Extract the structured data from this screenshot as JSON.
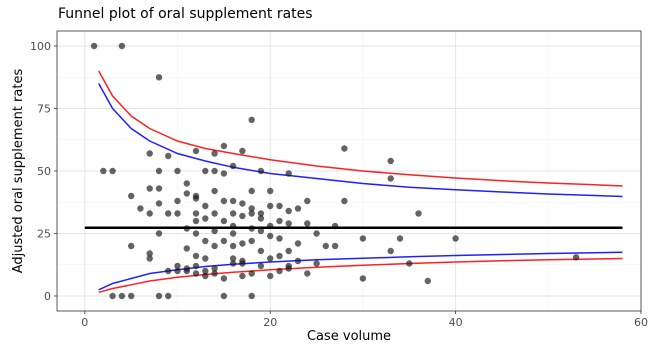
{
  "chart_data": {
    "type": "scatter",
    "title": "Funnel plot of oral supplement rates",
    "xlabel": "Case volume",
    "ylabel": "Adjusted oral supplement rates",
    "xlim": [
      -3,
      60
    ],
    "ylim": [
      -6,
      106
    ],
    "x_ticks": [
      0,
      20,
      40,
      60
    ],
    "y_ticks": [
      0,
      25,
      50,
      75,
      100
    ],
    "grid": true,
    "legend": "none",
    "colors": {
      "points": "#1a1a1a",
      "mean_line": "#000000",
      "limit_99": "#ff2020",
      "limit_95": "#2020ff",
      "grid_major": "#e5e5e5",
      "grid_minor": "#f2f2f2",
      "panel_border": "#333333"
    },
    "mean_rate": 27.3,
    "control_limits": {
      "x": [
        1.5,
        3,
        5,
        7,
        10,
        13,
        16,
        20,
        25,
        30,
        35,
        40,
        45,
        50,
        55,
        58
      ],
      "upper_99": [
        90.0,
        80.0,
        72.0,
        67.0,
        62.0,
        59.0,
        57.0,
        54.5,
        52.0,
        50.0,
        48.5,
        47.2,
        46.1,
        45.2,
        44.5,
        44.0
      ],
      "upper_95": [
        85.0,
        75.0,
        67.0,
        62.0,
        57.0,
        54.0,
        51.5,
        49.0,
        47.0,
        45.0,
        43.5,
        42.5,
        41.6,
        40.8,
        40.2,
        39.8
      ],
      "lower_95": [
        2.5,
        5.0,
        7.0,
        9.0,
        10.5,
        11.8,
        12.7,
        13.6,
        14.5,
        15.1,
        15.7,
        16.2,
        16.6,
        17.0,
        17.3,
        17.5
      ],
      "lower_99": [
        1.5,
        3.0,
        4.5,
        6.0,
        7.5,
        8.6,
        9.5,
        10.5,
        11.5,
        12.3,
        13.0,
        13.6,
        14.1,
        14.5,
        14.8,
        15.0
      ]
    },
    "points": [
      [
        1,
        100
      ],
      [
        4,
        100
      ],
      [
        8,
        87.5
      ],
      [
        18,
        70.5
      ],
      [
        28,
        59
      ],
      [
        15,
        60
      ],
      [
        14,
        57
      ],
      [
        17,
        58
      ],
      [
        12,
        58
      ],
      [
        33,
        54
      ],
      [
        2,
        50
      ],
      [
        3,
        50
      ],
      [
        7,
        57
      ],
      [
        8,
        50
      ],
      [
        9,
        56
      ],
      [
        10,
        50
      ],
      [
        11,
        45
      ],
      [
        13,
        50
      ],
      [
        14,
        50
      ],
      [
        15,
        49
      ],
      [
        16,
        52
      ],
      [
        19,
        50
      ],
      [
        22,
        49
      ],
      [
        33,
        47
      ],
      [
        7,
        43
      ],
      [
        8,
        43
      ],
      [
        11,
        41
      ],
      [
        12,
        40
      ],
      [
        14,
        42
      ],
      [
        18,
        42
      ],
      [
        20,
        42
      ],
      [
        24,
        38
      ],
      [
        28,
        38
      ],
      [
        5,
        40
      ],
      [
        6,
        35
      ],
      [
        8,
        37
      ],
      [
        10,
        38
      ],
      [
        12,
        39
      ],
      [
        13,
        36
      ],
      [
        15,
        38
      ],
      [
        16,
        38
      ],
      [
        17,
        37
      ],
      [
        18,
        35
      ],
      [
        20,
        36
      ],
      [
        21,
        36
      ],
      [
        22,
        34
      ],
      [
        23,
        35
      ],
      [
        36,
        33
      ],
      [
        7,
        33
      ],
      [
        9,
        33
      ],
      [
        10,
        33
      ],
      [
        12,
        33
      ],
      [
        14,
        33
      ],
      [
        16,
        33
      ],
      [
        18,
        33
      ],
      [
        19,
        33
      ],
      [
        24,
        29
      ],
      [
        27,
        28
      ],
      [
        12,
        30
      ],
      [
        13,
        31
      ],
      [
        15,
        30
      ],
      [
        17,
        32
      ],
      [
        19,
        31
      ],
      [
        21,
        30
      ],
      [
        22,
        29
      ],
      [
        11,
        27
      ],
      [
        14,
        26
      ],
      [
        16,
        28
      ],
      [
        18,
        27
      ],
      [
        20,
        28
      ],
      [
        8,
        25
      ],
      [
        12,
        25
      ],
      [
        16,
        25
      ],
      [
        19,
        26
      ],
      [
        20,
        24
      ],
      [
        21,
        23
      ],
      [
        25,
        25
      ],
      [
        30,
        23
      ],
      [
        34,
        23
      ],
      [
        40,
        23
      ],
      [
        13,
        22
      ],
      [
        15,
        22
      ],
      [
        17,
        21
      ],
      [
        18,
        22
      ],
      [
        23,
        21
      ],
      [
        27,
        20
      ],
      [
        5,
        20
      ],
      [
        7,
        17
      ],
      [
        11,
        19
      ],
      [
        14,
        20
      ],
      [
        16,
        20
      ],
      [
        19,
        18
      ],
      [
        22,
        18
      ],
      [
        26,
        20
      ],
      [
        33,
        18
      ],
      [
        7,
        15
      ],
      [
        12,
        16
      ],
      [
        13,
        15
      ],
      [
        16,
        15
      ],
      [
        17,
        14
      ],
      [
        20,
        15
      ],
      [
        21,
        16
      ],
      [
        23,
        14
      ],
      [
        25,
        13
      ],
      [
        35,
        13
      ],
      [
        53,
        15.5
      ],
      [
        10,
        12
      ],
      [
        11,
        10
      ],
      [
        12,
        12
      ],
      [
        13,
        10
      ],
      [
        14,
        11
      ],
      [
        16,
        13
      ],
      [
        17,
        13
      ],
      [
        19,
        12
      ],
      [
        21,
        10
      ],
      [
        22,
        11
      ],
      [
        24,
        9
      ],
      [
        9,
        10
      ],
      [
        10,
        10
      ],
      [
        11,
        11
      ],
      [
        12,
        9
      ],
      [
        13,
        8
      ],
      [
        14,
        9
      ],
      [
        15,
        7
      ],
      [
        17,
        8
      ],
      [
        18,
        9
      ],
      [
        20,
        8
      ],
      [
        22,
        12
      ],
      [
        30,
        7
      ],
      [
        37,
        6
      ],
      [
        3,
        0
      ],
      [
        4,
        0
      ],
      [
        5,
        0
      ],
      [
        8,
        0
      ],
      [
        9,
        0
      ],
      [
        15,
        0
      ],
      [
        18,
        0
      ]
    ]
  }
}
